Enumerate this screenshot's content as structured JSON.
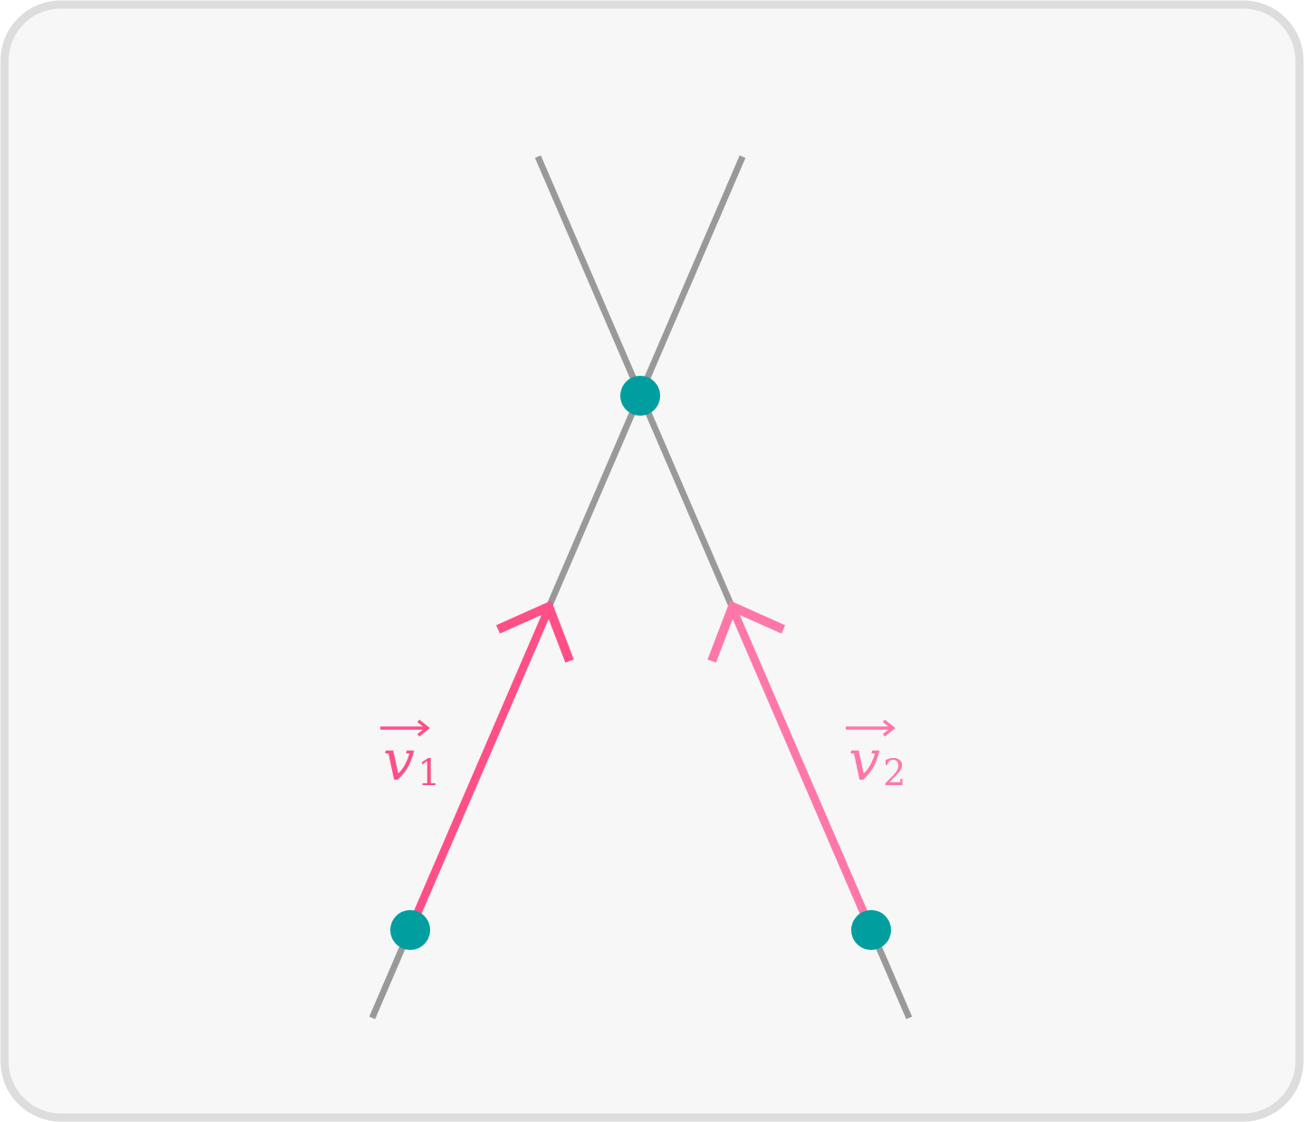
{
  "diagram": {
    "colors": {
      "background": "#f7f7f7",
      "border": "#dddddd",
      "line": "#999999",
      "point": "#009e9e",
      "vector1": "#ff4f86",
      "vector2": "#ff77a8"
    },
    "vectors": [
      {
        "symbol": "v",
        "subscript": "1"
      },
      {
        "symbol": "v",
        "subscript": "2"
      }
    ]
  }
}
